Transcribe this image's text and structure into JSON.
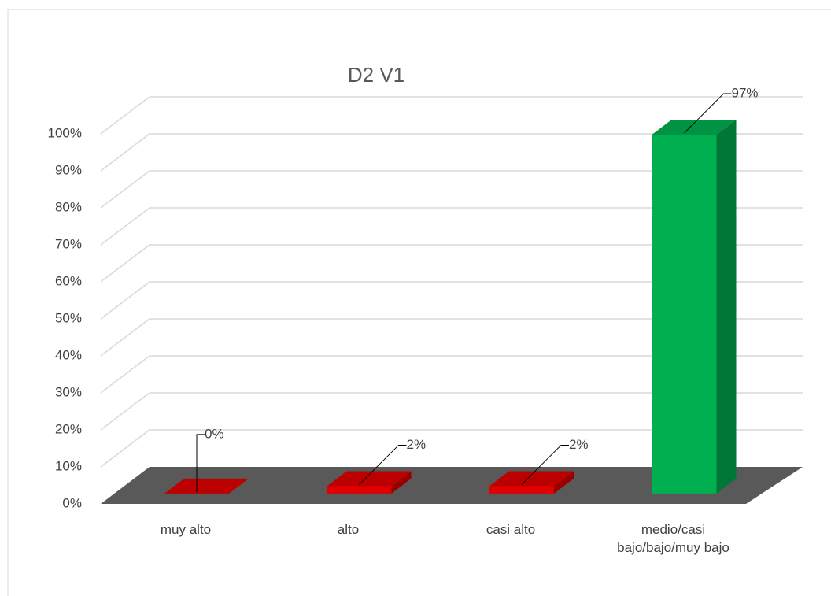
{
  "chart_data": {
    "type": "bar3d",
    "title": "D2 V1",
    "categories": [
      "muy alto",
      "alto",
      "casi alto",
      "medio/casi bajo/bajo/muy bajo"
    ],
    "values": [
      0,
      2,
      2,
      97
    ],
    "value_labels": [
      "0%",
      "2%",
      "2%",
      "97%"
    ],
    "colors": [
      "#e00000",
      "#e00000",
      "#e00000",
      "#00b050"
    ],
    "ylim": [
      0,
      100
    ],
    "yticks": [
      {
        "value": 0,
        "label": "0%"
      },
      {
        "value": 10,
        "label": "10%"
      },
      {
        "value": 20,
        "label": "20%"
      },
      {
        "value": 30,
        "label": "30%"
      },
      {
        "value": 40,
        "label": "40%"
      },
      {
        "value": 50,
        "label": "50%"
      },
      {
        "value": 60,
        "label": "60%"
      },
      {
        "value": 70,
        "label": "70%"
      },
      {
        "value": 80,
        "label": "80%"
      },
      {
        "value": 90,
        "label": "90%"
      },
      {
        "value": 100,
        "label": "100%"
      }
    ],
    "grid": true
  }
}
